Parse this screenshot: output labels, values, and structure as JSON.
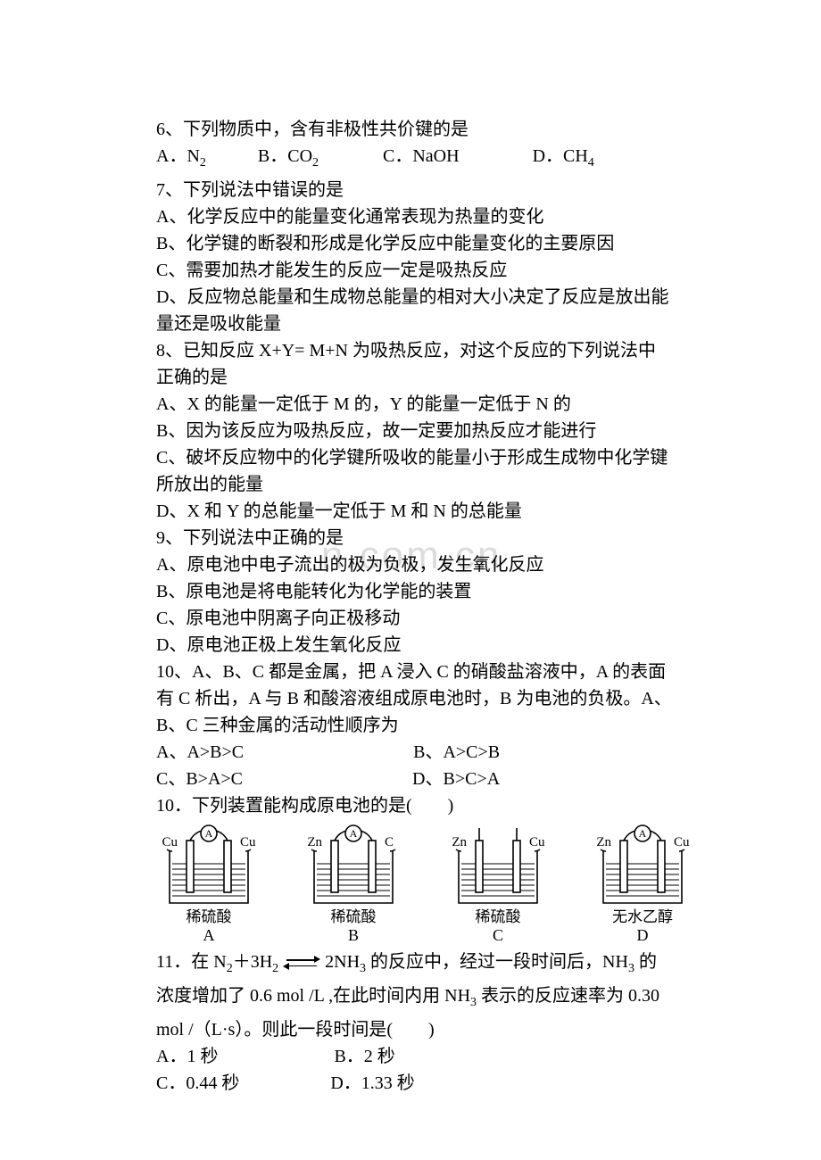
{
  "text_color": "#000000",
  "background_color": "#ffffff",
  "watermark_color": "#dcdcdc",
  "watermark_text": "n.com.cn",
  "font_size_body": 20,
  "font_size_sub": 14,
  "line_height": 30,
  "lines": {
    "l1": "6、下列物质中，含有非极性共价键的是",
    "l2a": "A．N",
    "l2a_sub": "2",
    "l2b": "B．CO",
    "l2b_sub": "2",
    "l2c": "C．NaOH",
    "l2d": "D．CH",
    "l2d_sub": "4",
    "l3": "7、下列说法中错误的是",
    "l4": "A、化学反应中的能量变化通常表现为热量的变化",
    "l5": "B、化学键的断裂和形成是化学反应中能量变化的主要原因",
    "l6": "C、需要加热才能发生的反应一定是吸热反应",
    "l7": "D、反应物总能量和生成物总能量的相对大小决定了反应是放出能",
    "l8": "量还是吸收能量",
    "l9": "8、已知反应 X+Y= M+N 为吸热反应，对这个反应的下列说法中",
    "l10": "正确的是",
    "l11": "A、X 的能量一定低于 M 的，Y 的能量一定低于 N 的",
    "l12": "B、因为该反应为吸热反应，故一定要加热反应才能进行",
    "l13": "C、破坏反应物中的化学键所吸收的能量小于形成生成物中化学键",
    "l14": "所放出的能量",
    "l15": "D、X 和 Y 的总能量一定低于 M 和 N 的总能量",
    "l16": "9、下列说法中正确的是",
    "l17": "A、原电池中电子流出的极为负极，发生氧化反应",
    "l18": "B、原电池是将电能转化为化学能的装置",
    "l19": "C、原电池中阴离子向正极移动",
    "l20": "D、原电池正极上发生氧化反应",
    "l21": "10、A、B、C 都是金属，把 A 浸入 C 的硝酸盐溶液中，A 的表面",
    "l22": "有 C 析出，A 与 B 和酸溶液组成原电池时，B 为电池的负极。A、",
    "l23": "B、C 三种金属的活动性顺序为",
    "l24a": "A、A>B>C",
    "l24b": "B、A>C>B",
    "l25a": "C、B>A>C",
    "l25b": "D、B>C>A",
    "l26": "10．下列装置能构成原电池的是(　　)",
    "l27a": "11．在 N",
    "l27a_sub": "2",
    "l27b": "＋3H",
    "l27b_sub": "2",
    "l27c": "  2NH",
    "l27c_sub": "3",
    "l27d": " 的反应中，经过一段时间后，NH",
    "l27d_sub": "3",
    "l27e": " 的",
    "l28a": "浓度增加了 0.6 mol /L ,在此时间内用 NH",
    "l28a_sub": "3",
    "l28b": " 表示的反应速率为 0.30",
    "l29": "mol /（L·s）。则此一段时间是(　　)",
    "l30a": "A．1 秒",
    "l30b": "B．2 秒",
    "l31a": "C．0.44 秒",
    "l31b": "D．1.33 秒"
  },
  "diagrams": [
    {
      "left_label": "Cu",
      "right_label": "Cu",
      "ammeter": true,
      "caption": "稀硫酸",
      "letter": "A"
    },
    {
      "left_label": "Zn",
      "right_label": "C",
      "ammeter": true,
      "caption": "稀硫酸",
      "letter": "B"
    },
    {
      "left_label": "Zn",
      "right_label": "Cu",
      "ammeter": false,
      "caption": "稀硫酸",
      "letter": "C"
    },
    {
      "left_label": "Zn",
      "right_label": "Cu",
      "ammeter": true,
      "caption": "无水乙醇",
      "letter": "D"
    }
  ],
  "diagram_style": {
    "width": 118,
    "height": 92,
    "stroke": "#000000",
    "stroke_width": 1.6,
    "fill": "none",
    "spacing": 44
  }
}
